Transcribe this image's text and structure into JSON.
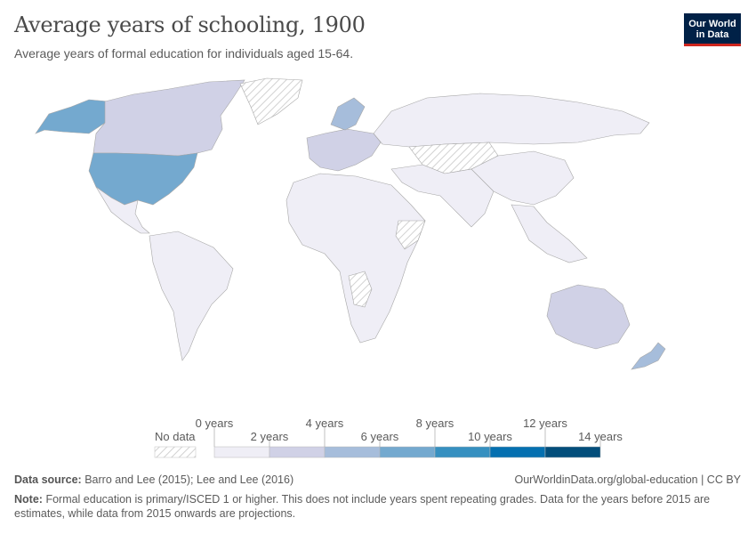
{
  "title": "Average years of schooling, 1900",
  "subtitle": "Average years of formal education for individuals aged 15-64.",
  "logo": {
    "line1": "Our World",
    "line2": "in Data"
  },
  "legend": {
    "no_data_label": "No data",
    "bins": [
      {
        "from": 0,
        "to": 2,
        "color": "#efeef6"
      },
      {
        "from": 2,
        "to": 4,
        "color": "#d0d1e6"
      },
      {
        "from": 4,
        "to": 6,
        "color": "#a6bddb"
      },
      {
        "from": 6,
        "to": 8,
        "color": "#74a9cf"
      },
      {
        "from": 8,
        "to": 10,
        "color": "#3690c0"
      },
      {
        "from": 10,
        "to": 12,
        "color": "#0570b0"
      },
      {
        "from": 12,
        "to": 14,
        "color": "#034e7b"
      }
    ],
    "tick_labels": [
      "0 years",
      "2 years",
      "4 years",
      "6 years",
      "8 years",
      "10 years",
      "12 years",
      "14 years"
    ]
  },
  "colors": {
    "nodata": "#e9e9e9",
    "border": "#a7a7a7",
    "hatch": "#cfcfcf"
  },
  "footer": {
    "source_label": "Data source:",
    "source_text": "Barro and Lee (2015); Lee and Lee (2016)",
    "url": "OurWorldinData.org/global-education | CC BY",
    "note_label": "Note:",
    "note_text": "Formal education is primary/ISCED 1 or higher. This does not include years spent repeating grades. Data for the years before 2015 are estimates, while data from 2015 onwards are projections."
  }
}
